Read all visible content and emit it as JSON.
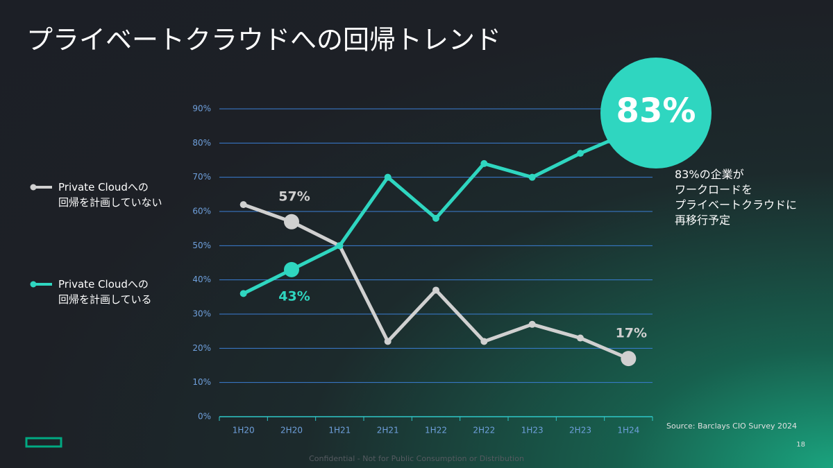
{
  "chart_data": {
    "type": "line",
    "title": "プライベートクラウドへの回帰トレンド",
    "categories": [
      "1H20",
      "2H20",
      "1H21",
      "2H21",
      "1H22",
      "2H22",
      "1H23",
      "2H23",
      "1H24"
    ],
    "series": [
      {
        "name": "Private Cloudへの\n回帰を計画していない",
        "color": "#d0d0d0",
        "values": [
          62,
          57,
          50,
          22,
          37,
          22,
          27,
          23,
          17
        ],
        "value_labels": [
          null,
          "57%",
          null,
          null,
          null,
          null,
          null,
          null,
          "17%"
        ]
      },
      {
        "name": "Private Cloudへの\n回帰を計画している",
        "color": "#2fd6c0",
        "values": [
          36,
          43,
          50,
          70,
          58,
          74,
          70,
          77,
          83
        ],
        "value_labels": [
          null,
          "43%",
          null,
          null,
          null,
          null,
          null,
          null,
          "83%"
        ]
      }
    ],
    "ylim": [
      0,
      90
    ],
    "yticks": [
      {
        "value": 0,
        "label": "0%"
      },
      {
        "value": 10,
        "label": "10%"
      },
      {
        "value": 20,
        "label": "20%"
      },
      {
        "value": 30,
        "label": "30%"
      },
      {
        "value": 40,
        "label": "40%"
      },
      {
        "value": 50,
        "label": "50%"
      },
      {
        "value": 60,
        "label": "60%"
      },
      {
        "value": 70,
        "label": "70%"
      },
      {
        "value": 80,
        "label": "80%"
      },
      {
        "value": 90,
        "label": "90%"
      }
    ],
    "grid": true,
    "annotation": "83%の企業が\nワークロードを\nプライベートクラウドに\n再移行予定",
    "source": "Source: Barclays CIO Survey 2024"
  },
  "footer": {
    "page_number": "18",
    "confidential": "Confidential - Not for Public Consumption or Distribution"
  }
}
